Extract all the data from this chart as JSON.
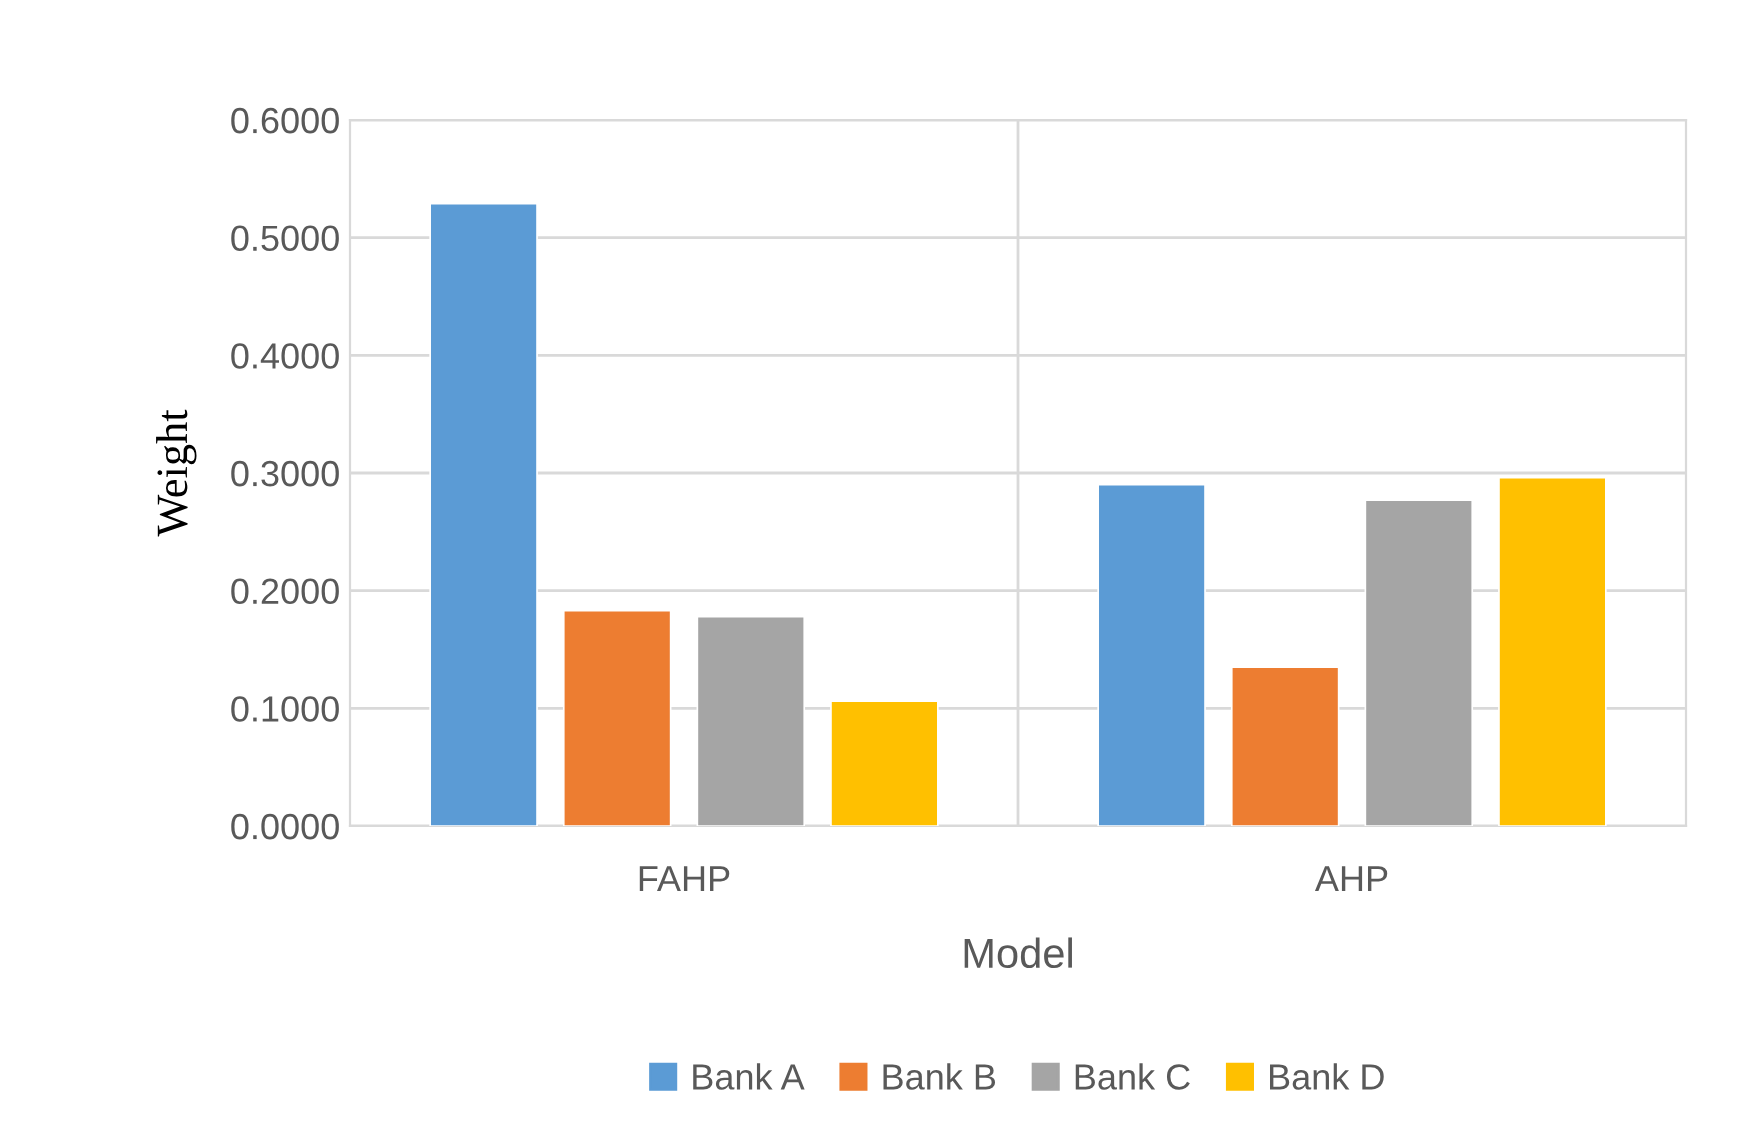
{
  "chart_data": {
    "type": "bar",
    "xlabel": "Model",
    "ylabel": "Weight",
    "categories": [
      "FAHP",
      "AHP"
    ],
    "series": [
      {
        "name": "Bank A",
        "color": "#5b9bd5",
        "values": [
          0.529,
          0.29
        ]
      },
      {
        "name": "Bank B",
        "color": "#ed7d31",
        "values": [
          0.183,
          0.135
        ]
      },
      {
        "name": "Bank C",
        "color": "#a5a5a5",
        "values": [
          0.178,
          0.277
        ]
      },
      {
        "name": "Bank D",
        "color": "#ffc000",
        "values": [
          0.106,
          0.296
        ]
      }
    ],
    "ylim": [
      0,
      0.6
    ],
    "yticks": [
      {
        "value": 0,
        "label": "0.0000"
      },
      {
        "value": 0.1,
        "label": "0.1000"
      },
      {
        "value": 0.2,
        "label": "0.2000"
      },
      {
        "value": 0.3,
        "label": "0.3000"
      },
      {
        "value": 0.4,
        "label": "0.4000"
      },
      {
        "value": 0.5,
        "label": "0.5000"
      },
      {
        "value": 0.6,
        "label": "0.6000"
      }
    ],
    "grid": true,
    "legend": "bottom"
  }
}
